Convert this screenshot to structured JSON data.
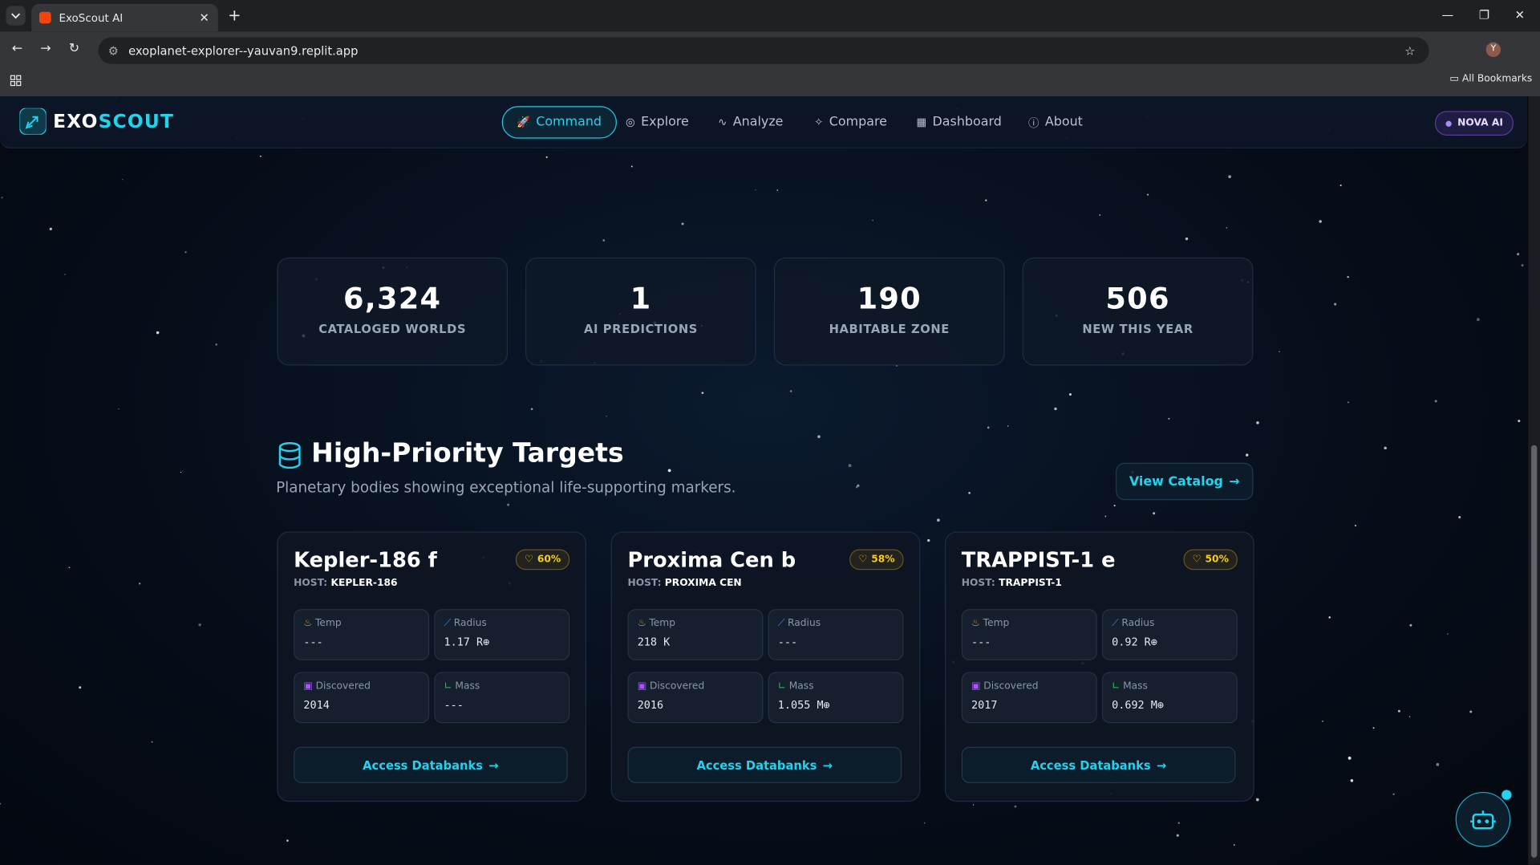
{
  "browser": {
    "tab_title": "ExoScout AI",
    "url": "exoplanet-explorer--yauvan9.replit.app",
    "bookmarks_label": "All Bookmarks",
    "profile": "Y"
  },
  "nav": {
    "brand_first": "EXO",
    "brand_second": "SCOUT",
    "items": [
      "Command",
      "Explore",
      "Analyze",
      "Compare",
      "Dashboard",
      "About"
    ],
    "badge": "NOVA AI"
  },
  "stats": [
    {
      "value": "6,324",
      "label": "CATALOGED WORLDS"
    },
    {
      "value": "1",
      "label": "AI PREDICTIONS"
    },
    {
      "value": "190",
      "label": "HABITABLE ZONE"
    },
    {
      "value": "506",
      "label": "NEW THIS YEAR"
    }
  ],
  "section": {
    "title": "High-Priority Targets",
    "subtitle": "Planetary bodies showing exceptional life-supporting markers.",
    "button": "View Catalog"
  },
  "cards": [
    {
      "name": "Kepler-186 f",
      "score": "60%",
      "host_label": "HOST:",
      "host": "KEPLER-186",
      "fields": [
        {
          "label": "Temp",
          "value": "---"
        },
        {
          "label": "Radius",
          "value": "1.17 R⊕"
        },
        {
          "label": "Discovered",
          "value": "2014"
        },
        {
          "label": "Mass",
          "value": "---"
        }
      ],
      "button": "Access Databanks"
    },
    {
      "name": "Proxima Cen b",
      "score": "58%",
      "host_label": "HOST:",
      "host": "PROXIMA CEN",
      "fields": [
        {
          "label": "Temp",
          "value": "218 K"
        },
        {
          "label": "Radius",
          "value": "---"
        },
        {
          "label": "Discovered",
          "value": "2016"
        },
        {
          "label": "Mass",
          "value": "1.055 M⊕"
        }
      ],
      "button": "Access Databanks"
    },
    {
      "name": "TRAPPIST-1 e",
      "score": "50%",
      "host_label": "HOST:",
      "host": "TRAPPIST-1",
      "fields": [
        {
          "label": "Temp",
          "value": "---"
        },
        {
          "label": "Radius",
          "value": "0.92 R⊕"
        },
        {
          "label": "Discovered",
          "value": "2017"
        },
        {
          "label": "Mass",
          "value": "0.692 M⊕"
        }
      ],
      "button": "Access Databanks"
    }
  ]
}
